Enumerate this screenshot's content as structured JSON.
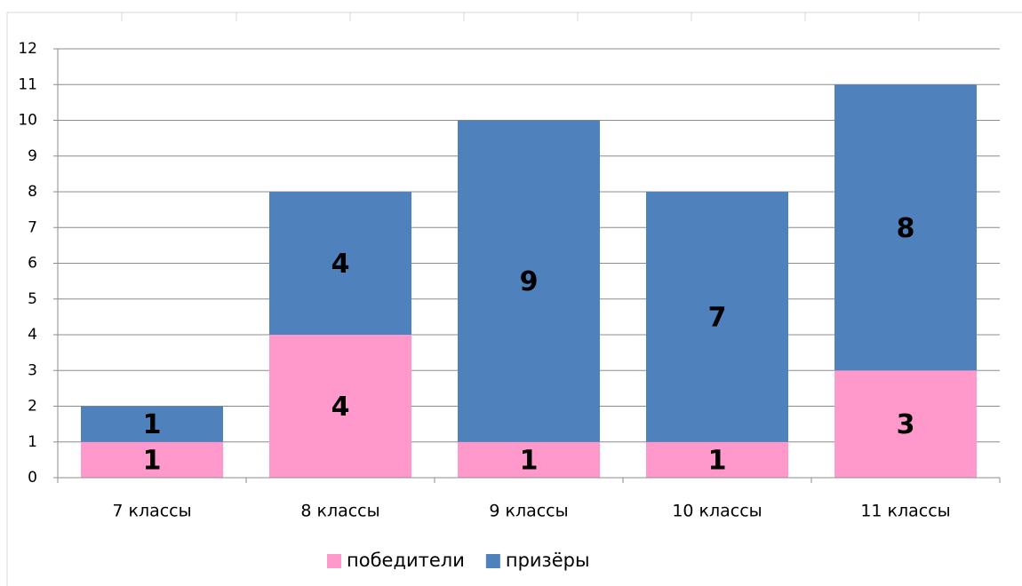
{
  "chart_data": {
    "type": "stacked_bar",
    "categories": [
      "7 классы",
      "8 классы",
      "9 классы",
      "10 классы",
      "11 классы"
    ],
    "series": [
      {
        "name": "победители",
        "color": "#ff99cc",
        "values": [
          1,
          4,
          1,
          1,
          3
        ]
      },
      {
        "name": "призёры",
        "color": "#4f81bd",
        "values": [
          1,
          4,
          9,
          7,
          8
        ]
      }
    ],
    "ylim": [
      0,
      12
    ],
    "yticks": [
      0,
      1,
      2,
      3,
      4,
      5,
      6,
      7,
      8,
      9,
      10,
      11,
      12
    ],
    "grid": true,
    "legend": "bottom"
  }
}
